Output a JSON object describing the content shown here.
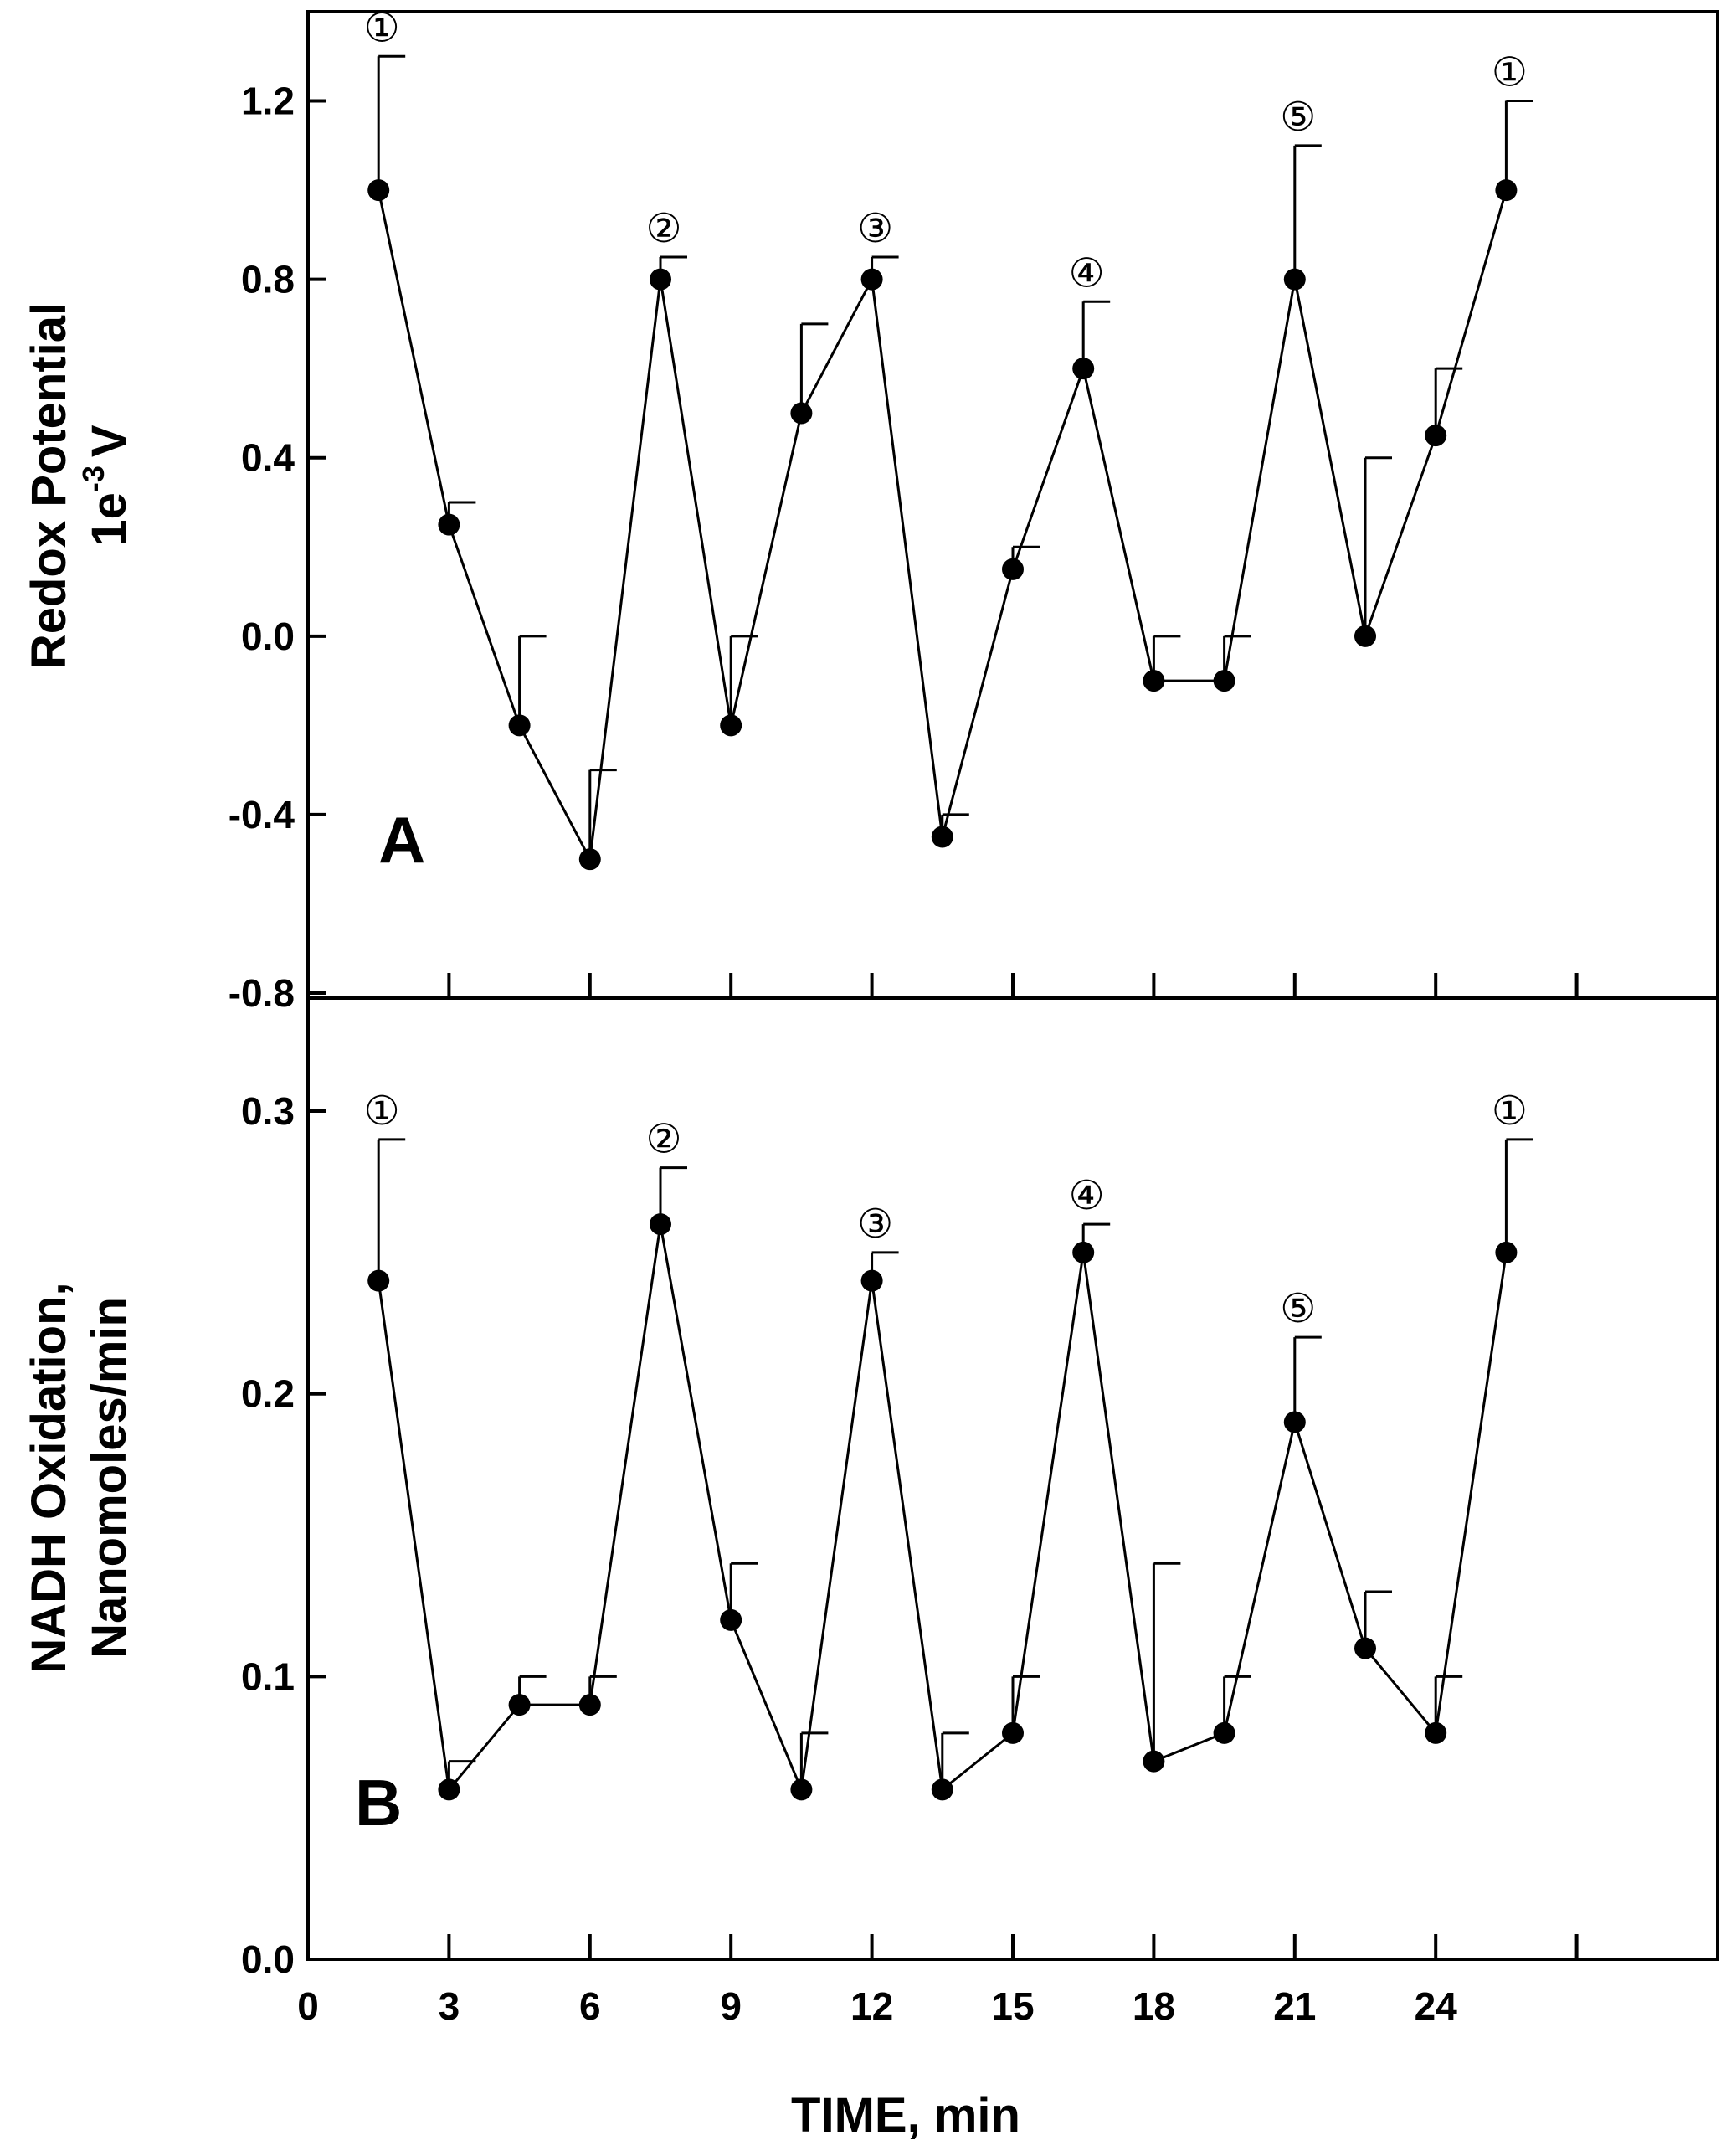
{
  "chart_data": [
    {
      "type": "line",
      "panel_label": "A",
      "ylabel_line1": "Redox Potential",
      "ylabel_base": "1e",
      "ylabel_exp": "-3",
      "ylabel_unit": "V",
      "ylim": [
        -0.8,
        1.4
      ],
      "yticks": [
        -0.8,
        -0.4,
        0.0,
        0.4,
        0.8,
        1.2
      ],
      "ytick_labels": [
        "-0.8",
        "-0.4",
        "0.0",
        "0.4",
        "0.8",
        "1.2"
      ],
      "x": [
        1.5,
        3.0,
        4.5,
        6.0,
        7.5,
        9.0,
        10.5,
        12.0,
        13.5,
        15.0,
        16.5,
        18.0,
        19.5,
        21.0,
        22.5,
        24.0,
        25.5
      ],
      "y": [
        1.0,
        0.25,
        -0.2,
        -0.5,
        0.8,
        -0.2,
        0.5,
        0.8,
        -0.45,
        0.15,
        0.6,
        -0.1,
        -0.1,
        0.8,
        0.0,
        0.45,
        1.0
      ],
      "err": [
        0.3,
        0.05,
        0.2,
        0.2,
        0.05,
        0.2,
        0.2,
        0.05,
        0.05,
        0.05,
        0.15,
        0.1,
        0.1,
        0.3,
        0.4,
        0.15,
        0.2
      ],
      "peak_labels": [
        {
          "index": 0,
          "label": "①"
        },
        {
          "index": 4,
          "label": "②"
        },
        {
          "index": 7,
          "label": "③"
        },
        {
          "index": 10,
          "label": "④"
        },
        {
          "index": 13,
          "label": "⑤"
        },
        {
          "index": 16,
          "label": "①"
        }
      ]
    },
    {
      "type": "line",
      "panel_label": "B",
      "ylabel_line1": "NADH Oxidation,",
      "ylabel_line2": "Nanomoles/min",
      "ylim": [
        0.0,
        0.34
      ],
      "yticks": [
        0.0,
        0.1,
        0.2,
        0.3
      ],
      "ytick_labels": [
        "0.0",
        "0.1",
        "0.2",
        "0.3"
      ],
      "x": [
        1.5,
        3.0,
        4.5,
        6.0,
        7.5,
        9.0,
        10.5,
        12.0,
        13.5,
        15.0,
        16.5,
        18.0,
        19.5,
        21.0,
        22.5,
        24.0,
        25.5
      ],
      "y": [
        0.24,
        0.06,
        0.09,
        0.09,
        0.26,
        0.12,
        0.06,
        0.24,
        0.06,
        0.08,
        0.25,
        0.07,
        0.08,
        0.19,
        0.11,
        0.08,
        0.25
      ],
      "err": [
        0.05,
        0.01,
        0.01,
        0.01,
        0.02,
        0.02,
        0.02,
        0.01,
        0.02,
        0.02,
        0.01,
        0.07,
        0.02,
        0.03,
        0.02,
        0.02,
        0.04
      ],
      "peak_labels": [
        {
          "index": 0,
          "label": "①"
        },
        {
          "index": 4,
          "label": "②"
        },
        {
          "index": 7,
          "label": "③"
        },
        {
          "index": 10,
          "label": "④"
        },
        {
          "index": 13,
          "label": "⑤"
        },
        {
          "index": 16,
          "label": "①"
        }
      ]
    }
  ],
  "x_axis": {
    "title": "TIME, min",
    "xlim": [
      0,
      30
    ],
    "ticks": [
      0,
      3,
      6,
      9,
      12,
      15,
      18,
      21,
      24,
      27
    ],
    "tick_labels": [
      "0",
      "3",
      "6",
      "9",
      "12",
      "15",
      "18",
      "21",
      "24",
      ""
    ]
  },
  "colors": {
    "line": "#000000",
    "marker": "#000000",
    "frame": "#000000",
    "background": "#ffffff"
  }
}
